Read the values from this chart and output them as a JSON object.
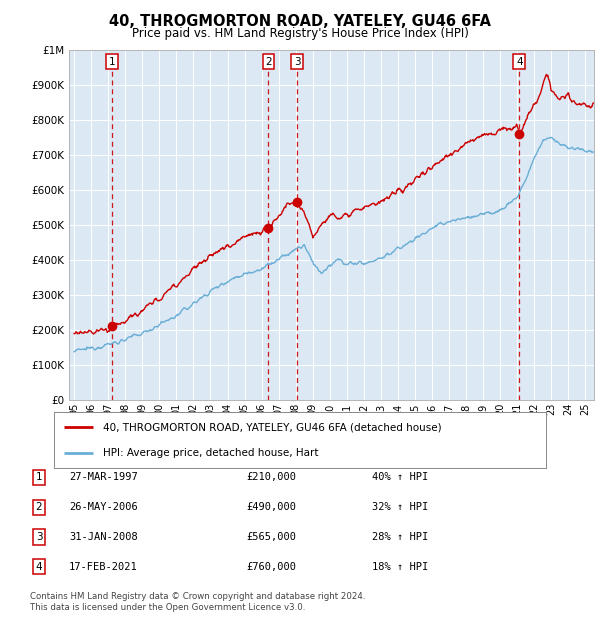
{
  "title": "40, THROGMORTON ROAD, YATELEY, GU46 6FA",
  "subtitle": "Price paid vs. HM Land Registry's House Price Index (HPI)",
  "background_color": "#dce9f5",
  "plot_bg_color": "#dce9f5",
  "hpi_line_color": "#6aaed6",
  "price_line_color": "#cc0000",
  "marker_color": "#cc0000",
  "dashed_line_color": "#cc0000",
  "ylabel_values": [
    "£0",
    "£100K",
    "£200K",
    "£300K",
    "£400K",
    "£500K",
    "£600K",
    "£700K",
    "£800K",
    "£900K",
    "£1M"
  ],
  "ytick_values": [
    0,
    100000,
    200000,
    300000,
    400000,
    500000,
    600000,
    700000,
    800000,
    900000,
    1000000
  ],
  "xlim_start": 1994.7,
  "xlim_end": 2025.5,
  "ylim_min": 0,
  "ylim_max": 1000000,
  "sales": [
    {
      "label": "1",
      "date": 1997.24,
      "price": 210000
    },
    {
      "label": "2",
      "date": 2006.4,
      "price": 490000
    },
    {
      "label": "3",
      "date": 2008.08,
      "price": 565000
    },
    {
      "label": "4",
      "date": 2021.12,
      "price": 760000
    }
  ],
  "legend_entries": [
    "40, THROGMORTON ROAD, YATELEY, GU46 6FA (detached house)",
    "HPI: Average price, detached house, Hart"
  ],
  "table_rows": [
    {
      "num": "1",
      "date": "27-MAR-1997",
      "price": "£210,000",
      "hpi": "40% ↑ HPI"
    },
    {
      "num": "2",
      "date": "26-MAY-2006",
      "price": "£490,000",
      "hpi": "32% ↑ HPI"
    },
    {
      "num": "3",
      "date": "31-JAN-2008",
      "price": "£565,000",
      "hpi": "28% ↑ HPI"
    },
    {
      "num": "4",
      "date": "17-FEB-2021",
      "price": "£760,000",
      "hpi": "18% ↑ HPI"
    }
  ],
  "footnote": "Contains HM Land Registry data © Crown copyright and database right 2024.\nThis data is licensed under the Open Government Licence v3.0."
}
